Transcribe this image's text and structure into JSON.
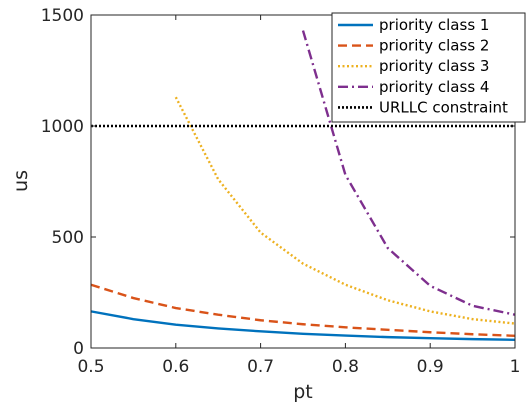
{
  "chart_data": {
    "type": "line",
    "title": "",
    "xlabel": "pt",
    "ylabel": "us",
    "xlim": [
      0.5,
      1
    ],
    "ylim": [
      0,
      1500
    ],
    "xticks": [
      0.5,
      0.6,
      0.7,
      0.8,
      0.9,
      1
    ],
    "xtick_labels": [
      "0.5",
      "0.6",
      "0.7",
      "0.8",
      "0.9",
      "1"
    ],
    "yticks": [
      0,
      500,
      1000,
      1500
    ],
    "ytick_labels": [
      "0",
      "500",
      "1000",
      "1500"
    ],
    "grid": false,
    "legend_position": "top-right",
    "series": [
      {
        "name": "priority class 1",
        "color": "#0072BD",
        "dash": "solid",
        "x": [
          0.5,
          0.55,
          0.6,
          0.65,
          0.7,
          0.75,
          0.8,
          0.85,
          0.9,
          0.95,
          1.0
        ],
        "y": [
          165,
          130,
          105,
          88,
          75,
          64,
          56,
          49,
          44,
          40,
          37
        ]
      },
      {
        "name": "priority class 2",
        "color": "#D95319",
        "dash": "dashed",
        "x": [
          0.5,
          0.55,
          0.6,
          0.65,
          0.7,
          0.75,
          0.8,
          0.85,
          0.9,
          0.95,
          1.0
        ],
        "y": [
          285,
          225,
          180,
          150,
          125,
          107,
          93,
          82,
          71,
          62,
          55
        ]
      },
      {
        "name": "priority class 3",
        "color": "#EDB120",
        "dash": "dotted",
        "x": [
          0.6,
          0.65,
          0.7,
          0.75,
          0.8,
          0.85,
          0.9,
          0.95,
          1.0
        ],
        "y": [
          1130,
          760,
          520,
          380,
          285,
          215,
          165,
          130,
          110
        ]
      },
      {
        "name": "priority class 4",
        "color": "#7E2F8E",
        "dash": "dashdot",
        "x": [
          0.75,
          0.8,
          0.85,
          0.9,
          0.95,
          1.0
        ],
        "y": [
          1430,
          780,
          450,
          280,
          190,
          150
        ]
      },
      {
        "name": "URLLC constraint",
        "color": "#000000",
        "dash": "dotted-thick",
        "x": [
          0.5,
          1.0
        ],
        "y": [
          1000,
          1000
        ]
      }
    ]
  }
}
